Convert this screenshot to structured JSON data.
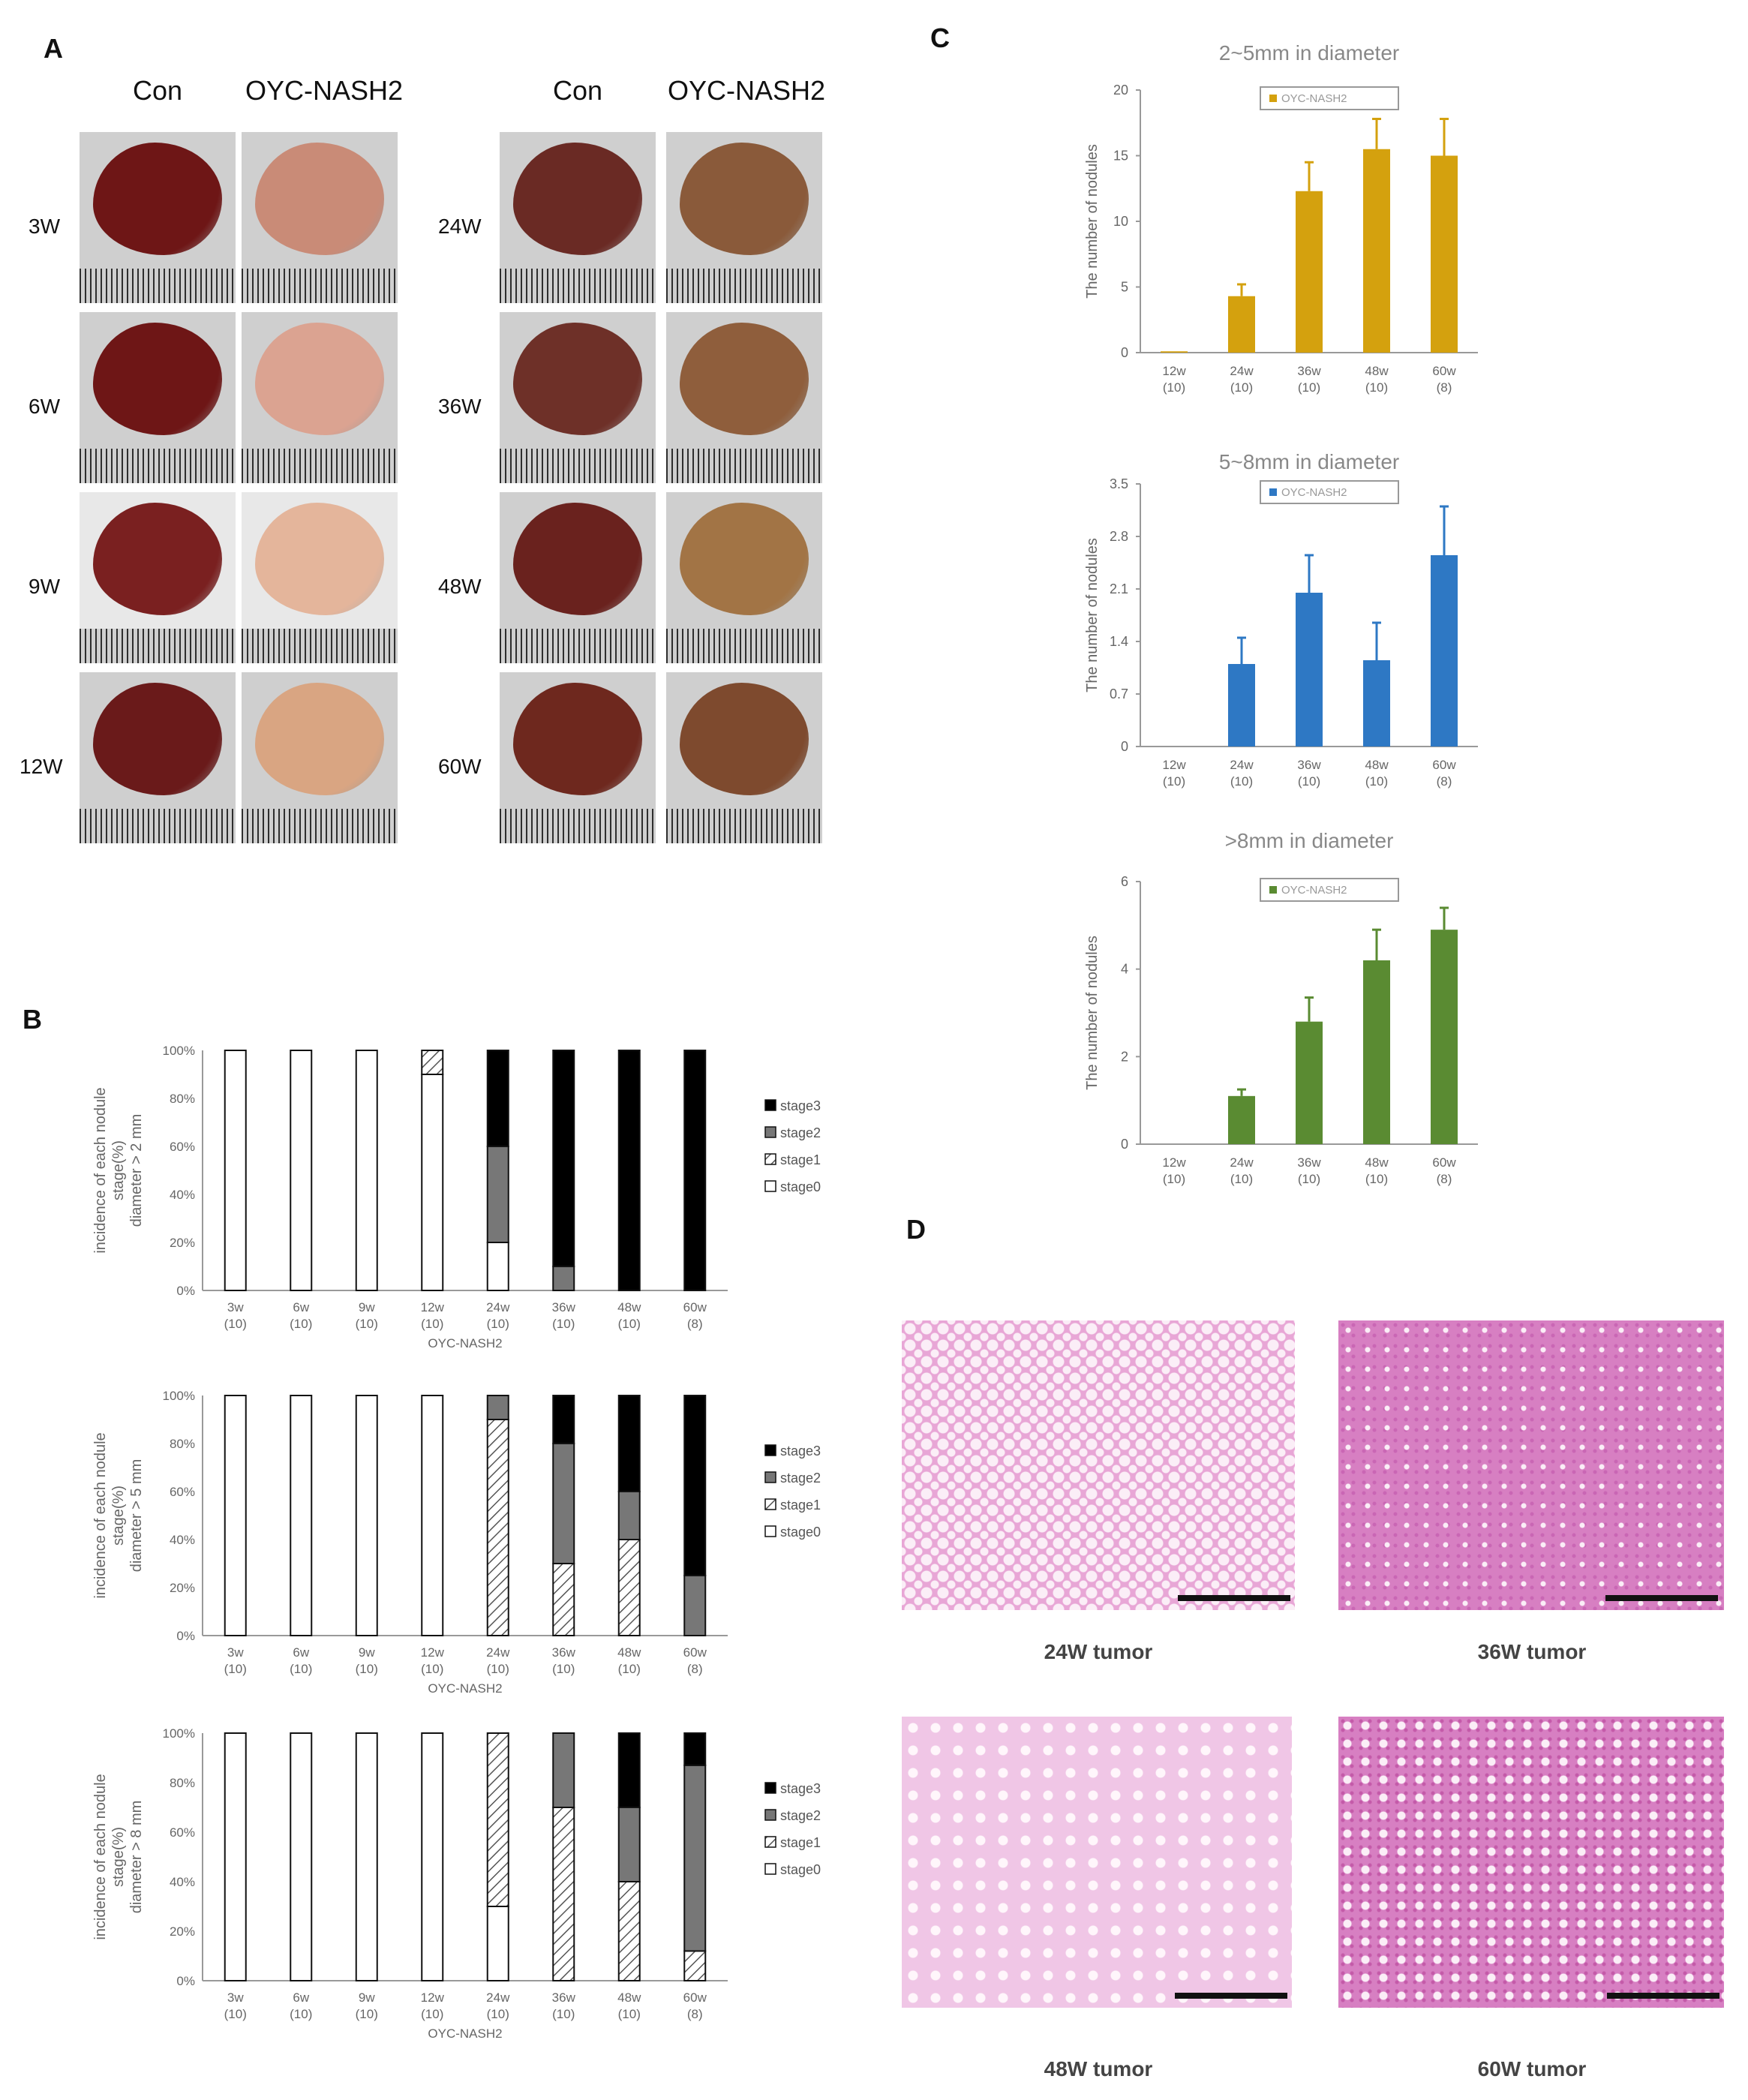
{
  "panels": {
    "a": "A",
    "b": "B",
    "c": "C",
    "d": "D"
  },
  "panel_a": {
    "col_heads": [
      "Con",
      "OYC-NASH2",
      "Con",
      "OYC-NASH2"
    ],
    "left_rows": [
      "3W",
      "6W",
      "9W",
      "12W"
    ],
    "right_rows": [
      "24W",
      "36W",
      "48W",
      "60W"
    ],
    "colors": {
      "con_liver": "#7a1f1f",
      "nash_liver_early": "#c98b77",
      "nash_liver_late": "#8a5a3a",
      "photo_bg": "#cfcfcf"
    }
  },
  "panel_d": {
    "captions": [
      "24W tumor",
      "36W tumor",
      "48W tumor",
      "60W tumor"
    ],
    "colors": {
      "tissue": "#e8a6d6",
      "tissue_dense": "#d77fc2",
      "vacuole": "#fbeef7"
    }
  },
  "chart_data": [
    {
      "id": "b1",
      "type": "bar",
      "stacked": true,
      "categories": [
        "3w",
        "6w",
        "9w",
        "12w",
        "24w",
        "36w",
        "48w",
        "60w"
      ],
      "category_n": [
        "(10)",
        "(10)",
        "(10)",
        "(10)",
        "(10)",
        "(10)",
        "(10)",
        "(8)"
      ],
      "xlabel": "OYC-NASH2",
      "ylabel_lines": [
        "incidence of each nodule",
        "stage(%)",
        "diameter > 2 mm"
      ],
      "yticks": [
        "0%",
        "20%",
        "40%",
        "60%",
        "80%",
        "100%"
      ],
      "ylim": [
        0,
        100
      ],
      "series": [
        {
          "name": "stage0",
          "values": [
            100,
            100,
            100,
            90,
            20,
            0,
            0,
            0
          ]
        },
        {
          "name": "stage1",
          "values": [
            0,
            0,
            0,
            10,
            0,
            0,
            0,
            0
          ]
        },
        {
          "name": "stage2",
          "values": [
            0,
            0,
            0,
            0,
            40,
            10,
            0,
            0
          ]
        },
        {
          "name": "stage3",
          "values": [
            0,
            0,
            0,
            0,
            40,
            90,
            100,
            100
          ]
        }
      ],
      "legend_order": [
        "stage3",
        "stage2",
        "stage1",
        "stage0"
      ],
      "legend": "right"
    },
    {
      "id": "b2",
      "type": "bar",
      "stacked": true,
      "categories": [
        "3w",
        "6w",
        "9w",
        "12w",
        "24w",
        "36w",
        "48w",
        "60w"
      ],
      "category_n": [
        "(10)",
        "(10)",
        "(10)",
        "(10)",
        "(10)",
        "(10)",
        "(10)",
        "(8)"
      ],
      "xlabel": "OYC-NASH2",
      "ylabel_lines": [
        "incidence of each nodule",
        "stage(%)",
        "diameter > 5 mm"
      ],
      "yticks": [
        "0%",
        "20%",
        "40%",
        "60%",
        "80%",
        "100%"
      ],
      "ylim": [
        0,
        100
      ],
      "series": [
        {
          "name": "stage0",
          "values": [
            100,
            100,
            100,
            100,
            0,
            0,
            0,
            0
          ]
        },
        {
          "name": "stage1",
          "values": [
            0,
            0,
            0,
            0,
            90,
            30,
            40,
            0
          ]
        },
        {
          "name": "stage2",
          "values": [
            0,
            0,
            0,
            0,
            10,
            50,
            20,
            25
          ]
        },
        {
          "name": "stage3",
          "values": [
            0,
            0,
            0,
            0,
            0,
            20,
            40,
            75
          ]
        }
      ],
      "legend_order": [
        "stage3",
        "stage2",
        "stage1",
        "stage0"
      ],
      "legend": "right"
    },
    {
      "id": "b3",
      "type": "bar",
      "stacked": true,
      "categories": [
        "3w",
        "6w",
        "9w",
        "12w",
        "24w",
        "36w",
        "48w",
        "60w"
      ],
      "category_n": [
        "(10)",
        "(10)",
        "(10)",
        "(10)",
        "(10)",
        "(10)",
        "(10)",
        "(8)"
      ],
      "xlabel": "OYC-NASH2",
      "ylabel_lines": [
        "incidence of each nodule",
        "stage(%)",
        "diameter > 8 mm"
      ],
      "yticks": [
        "0%",
        "20%",
        "40%",
        "60%",
        "80%",
        "100%"
      ],
      "ylim": [
        0,
        100
      ],
      "series": [
        {
          "name": "stage0",
          "values": [
            100,
            100,
            100,
            100,
            30,
            0,
            0,
            0
          ]
        },
        {
          "name": "stage1",
          "values": [
            0,
            0,
            0,
            0,
            70,
            70,
            40,
            12
          ]
        },
        {
          "name": "stage2",
          "values": [
            0,
            0,
            0,
            0,
            0,
            30,
            30,
            75
          ]
        },
        {
          "name": "stage3",
          "values": [
            0,
            0,
            0,
            0,
            0,
            0,
            30,
            13
          ]
        }
      ],
      "legend_order": [
        "stage3",
        "stage2",
        "stage1",
        "stage0"
      ],
      "legend": "right"
    },
    {
      "id": "c1",
      "type": "bar",
      "title": "2~5mm in diameter",
      "legend_label": "OYC-NASH2",
      "color": "#d4a10e",
      "categories": [
        "12w",
        "24w",
        "36w",
        "48w",
        "60w"
      ],
      "category_n": [
        "(10)",
        "(10)",
        "(10)",
        "(10)",
        "(8)"
      ],
      "ylabel": "The number of nodules",
      "yticks": [
        "0",
        "5",
        "10",
        "15",
        "20"
      ],
      "ylim": [
        0,
        20
      ],
      "values": [
        0.1,
        4.3,
        12.3,
        15.5,
        15.0
      ],
      "errors": [
        0,
        0.9,
        2.2,
        2.3,
        2.8
      ]
    },
    {
      "id": "c2",
      "type": "bar",
      "title": "5~8mm in diameter",
      "legend_label": "OYC-NASH2",
      "color": "#2e78c4",
      "categories": [
        "12w",
        "24w",
        "36w",
        "48w",
        "60w"
      ],
      "category_n": [
        "(10)",
        "(10)",
        "(10)",
        "(10)",
        "(8)"
      ],
      "ylabel": "The number of nodules",
      "yticks": [
        "0",
        "0.7",
        "1.4",
        "2.1",
        "2.8",
        "3.5"
      ],
      "ylim": [
        0,
        3.5
      ],
      "values": [
        0,
        1.1,
        2.05,
        1.15,
        2.55
      ],
      "errors": [
        0,
        0.35,
        0.5,
        0.5,
        0.65
      ]
    },
    {
      "id": "c3",
      "type": "bar",
      "title": ">8mm in diameter",
      "legend_label": "OYC-NASH2",
      "color": "#5a8b32",
      "categories": [
        "12w",
        "24w",
        "36w",
        "48w",
        "60w"
      ],
      "category_n": [
        "(10)",
        "(10)",
        "(10)",
        "(10)",
        "(8)"
      ],
      "ylabel": "The number of nodules",
      "yticks": [
        "0",
        "2",
        "4",
        "6"
      ],
      "ylim": [
        0,
        6
      ],
      "values": [
        0,
        1.1,
        2.8,
        4.2,
        4.9
      ],
      "errors": [
        0,
        0.15,
        0.55,
        0.7,
        0.5
      ]
    }
  ]
}
